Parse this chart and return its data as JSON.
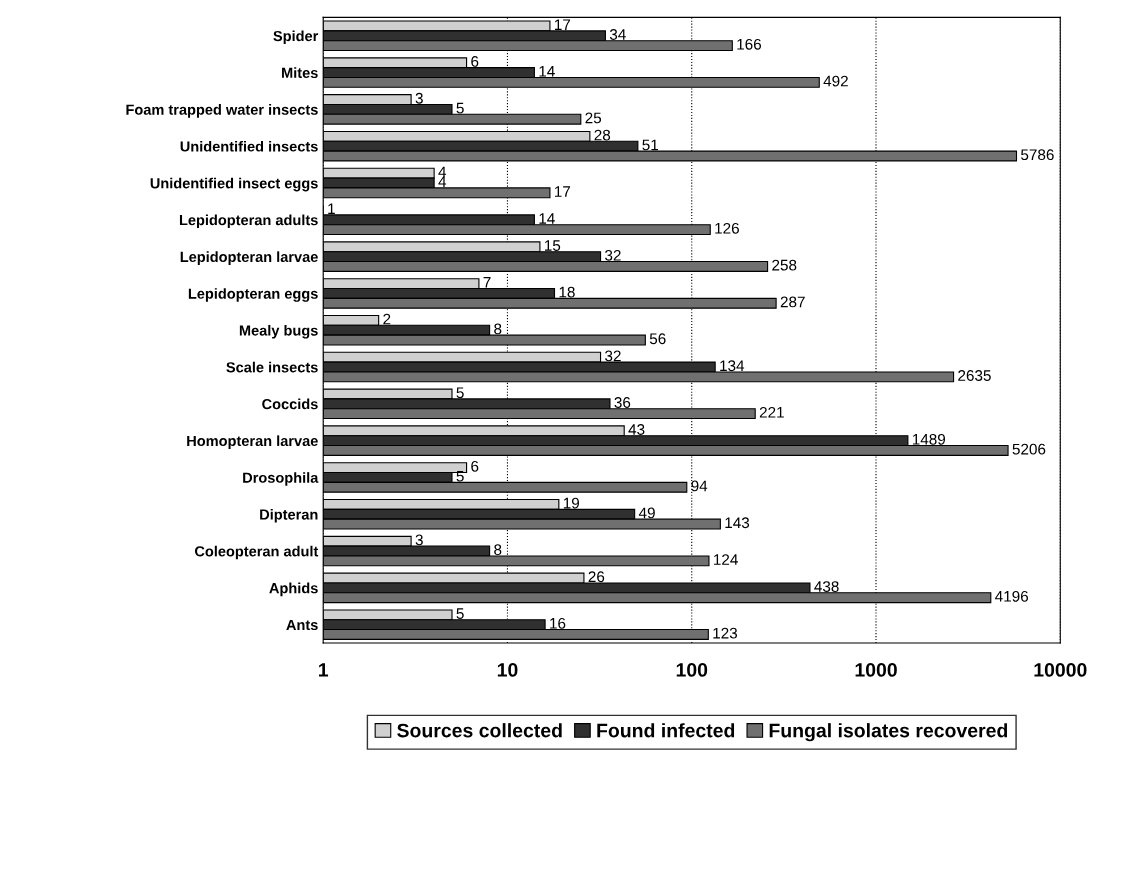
{
  "chart_data": {
    "type": "bar",
    "orientation": "horizontal",
    "log": "x",
    "categories": [
      "Spider",
      "Mites",
      "Foam trapped water insects",
      "Unidentified insects",
      "Unidentified insect eggs",
      "Lepidopteran adults",
      "Lepidopteran larvae",
      "Lepidopteran eggs",
      "Mealy bugs",
      "Scale insects",
      "Coccids",
      "Homopteran larvae",
      "Drosophila",
      "Dipteran",
      "Coleopteran adult",
      "Aphids",
      "Ants"
    ],
    "series": [
      {
        "name": "Sources collected",
        "color": "#d0d0d0",
        "values": [
          17,
          6,
          3,
          28,
          4,
          1,
          15,
          7,
          2,
          32,
          5,
          43,
          6,
          19,
          3,
          26,
          5
        ]
      },
      {
        "name": "Found infected",
        "color": "#303030",
        "values": [
          34,
          14,
          5,
          51,
          4,
          14,
          32,
          18,
          8,
          134,
          36,
          1489,
          5,
          49,
          8,
          438,
          16
        ]
      },
      {
        "name": "Fungal isolates recovered",
        "color": "#707070",
        "values": [
          166,
          492,
          25,
          5786,
          17,
          126,
          258,
          287,
          56,
          2635,
          221,
          5206,
          94,
          143,
          124,
          4196,
          123
        ]
      }
    ],
    "xlim": [
      1,
      10000
    ],
    "xticks": [
      1,
      10,
      100,
      1000,
      10000
    ],
    "grid": "x",
    "legend": "bottom",
    "data_labels": true
  }
}
